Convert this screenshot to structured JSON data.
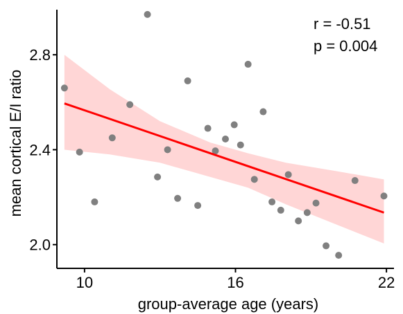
{
  "chart_data": {
    "type": "scatter",
    "xlabel": "group-average age (years)",
    "ylabel": "mean cortical E/I ratio",
    "xlim": [
      8.9,
      22.3
    ],
    "ylim": [
      1.9,
      2.99
    ],
    "x_ticks": [
      10,
      16,
      22
    ],
    "y_ticks": [
      2.0,
      2.4,
      2.8
    ],
    "x_tick_labels": [
      "10",
      "16",
      "22"
    ],
    "y_tick_labels": [
      "2.0",
      "2.4",
      "2.8"
    ],
    "grid": false,
    "annotations": {
      "r": "r = -0.51",
      "p": "p = 0.004"
    },
    "points": [
      {
        "x": 9.2,
        "y": 2.66
      },
      {
        "x": 9.8,
        "y": 2.39
      },
      {
        "x": 10.4,
        "y": 2.18
      },
      {
        "x": 11.1,
        "y": 2.45
      },
      {
        "x": 11.8,
        "y": 2.59
      },
      {
        "x": 12.5,
        "y": 2.97
      },
      {
        "x": 12.9,
        "y": 2.285
      },
      {
        "x": 13.3,
        "y": 2.4
      },
      {
        "x": 13.7,
        "y": 2.195
      },
      {
        "x": 14.1,
        "y": 2.69
      },
      {
        "x": 14.5,
        "y": 2.165
      },
      {
        "x": 14.9,
        "y": 2.49
      },
      {
        "x": 15.2,
        "y": 2.395
      },
      {
        "x": 15.6,
        "y": 2.445
      },
      {
        "x": 15.95,
        "y": 2.505
      },
      {
        "x": 16.2,
        "y": 2.42
      },
      {
        "x": 16.5,
        "y": 2.76
      },
      {
        "x": 16.75,
        "y": 2.275
      },
      {
        "x": 17.1,
        "y": 2.56
      },
      {
        "x": 17.45,
        "y": 2.18
      },
      {
        "x": 17.8,
        "y": 2.145
      },
      {
        "x": 18.1,
        "y": 2.295
      },
      {
        "x": 18.5,
        "y": 2.1
      },
      {
        "x": 18.85,
        "y": 2.135
      },
      {
        "x": 19.2,
        "y": 2.175
      },
      {
        "x": 19.6,
        "y": 1.995
      },
      {
        "x": 20.1,
        "y": 1.955
      },
      {
        "x": 20.75,
        "y": 2.27
      },
      {
        "x": 21.9,
        "y": 2.205
      }
    ],
    "regression": {
      "x": [
        9.2,
        21.9
      ],
      "y": [
        2.595,
        2.135
      ]
    },
    "confidence_band": {
      "x": [
        9.2,
        11.0,
        13.0,
        15.0,
        16.5,
        18.0,
        20.0,
        21.9
      ],
      "upper": [
        2.8,
        2.655,
        2.52,
        2.43,
        2.385,
        2.345,
        2.31,
        2.275
      ],
      "lower": [
        2.4,
        2.38,
        2.345,
        2.285,
        2.24,
        2.17,
        2.085,
        2.005
      ]
    },
    "colors": {
      "points": "#808080",
      "regression_line": "#ff0000",
      "band": "#ffd6d6",
      "axis": "#000000"
    }
  }
}
